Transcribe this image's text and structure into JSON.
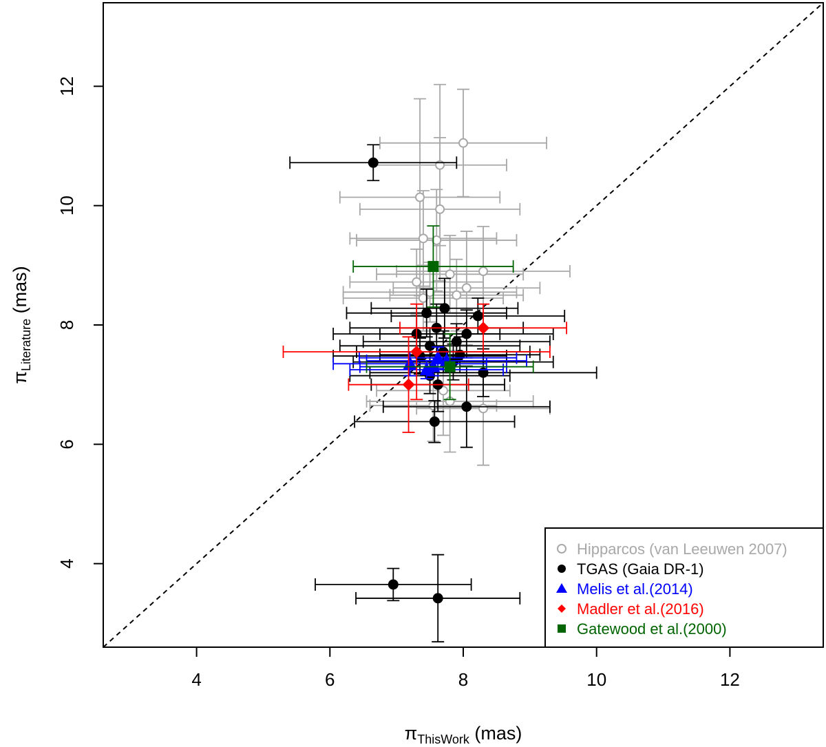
{
  "chart_data": {
    "type": "scatter",
    "title": "",
    "xlabel": {
      "symbol": "π",
      "subscript": "ThisWork",
      "unit": " (mas)"
    },
    "ylabel": {
      "symbol": "π",
      "subscript": "Literature",
      "unit": " (mas)"
    },
    "xlim": [
      2.6,
      13.4
    ],
    "ylim": [
      2.6,
      13.4
    ],
    "xticks": [
      4,
      6,
      8,
      10,
      12
    ],
    "yticks": [
      4,
      6,
      8,
      10,
      12
    ],
    "reference_line": "y = x (dashed)",
    "grid": false,
    "legend_position": "bottom-right",
    "series": [
      {
        "name": "Hipparcos (van Leeuwen 2007)",
        "color": "#a8a8a8",
        "marker": "open-circle",
        "points": [
          {
            "x": 8.0,
            "y": 11.05,
            "xerr": 1.25,
            "yerr": 0.9
          },
          {
            "x": 7.65,
            "y": 10.68,
            "xerr": 1.0,
            "yerr": 1.35
          },
          {
            "x": 7.35,
            "y": 10.14,
            "xerr": 1.2,
            "yerr": 1.65
          },
          {
            "x": 7.65,
            "y": 9.94,
            "xerr": 1.2,
            "yerr": 1.2
          },
          {
            "x": 7.4,
            "y": 9.45,
            "xerr": 1.1,
            "yerr": 0.8
          },
          {
            "x": 7.6,
            "y": 9.42,
            "xerr": 1.2,
            "yerr": 0.85
          },
          {
            "x": 8.3,
            "y": 8.9,
            "xerr": 1.3,
            "yerr": 0.75
          },
          {
            "x": 7.8,
            "y": 8.85,
            "xerr": 1.1,
            "yerr": 0.65
          },
          {
            "x": 7.3,
            "y": 8.72,
            "xerr": 1.0,
            "yerr": 0.55
          },
          {
            "x": 8.05,
            "y": 8.62,
            "xerr": 1.1,
            "yerr": 0.95
          },
          {
            "x": 7.5,
            "y": 8.55,
            "xerr": 1.3,
            "yerr": 0.5
          },
          {
            "x": 7.9,
            "y": 8.5,
            "xerr": 1.0,
            "yerr": 0.6
          },
          {
            "x": 7.4,
            "y": 8.45,
            "xerr": 1.2,
            "yerr": 0.55
          },
          {
            "x": 7.7,
            "y": 6.9,
            "xerr": 1.0,
            "yerr": 0.75
          },
          {
            "x": 7.8,
            "y": 6.72,
            "xerr": 1.25,
            "yerr": 0.85
          },
          {
            "x": 8.3,
            "y": 6.6,
            "xerr": 1.0,
            "yerr": 0.95
          },
          {
            "x": 7.55,
            "y": 6.65,
            "xerr": 0.95,
            "yerr": 0.6
          }
        ]
      },
      {
        "name": "TGAS (Gaia DR-1)",
        "color": "#000000",
        "marker": "filled-circle",
        "points": [
          {
            "x": 6.65,
            "y": 10.72,
            "xerr": 1.25,
            "yerr": 0.3
          },
          {
            "x": 7.72,
            "y": 8.28,
            "xerr": 1.1,
            "yerr": 0.5
          },
          {
            "x": 8.22,
            "y": 8.15,
            "xerr": 1.3,
            "yerr": 0.3
          },
          {
            "x": 7.45,
            "y": 8.2,
            "xerr": 1.2,
            "yerr": 0.4
          },
          {
            "x": 7.6,
            "y": 7.95,
            "xerr": 1.3,
            "yerr": 0.4
          },
          {
            "x": 8.05,
            "y": 7.85,
            "xerr": 1.3,
            "yerr": 0.4
          },
          {
            "x": 7.3,
            "y": 7.85,
            "xerr": 1.25,
            "yerr": 0.35
          },
          {
            "x": 7.9,
            "y": 7.72,
            "xerr": 1.4,
            "yerr": 0.3
          },
          {
            "x": 7.5,
            "y": 7.65,
            "xerr": 1.35,
            "yerr": 0.3
          },
          {
            "x": 7.7,
            "y": 7.55,
            "xerr": 1.3,
            "yerr": 0.35
          },
          {
            "x": 7.95,
            "y": 7.5,
            "xerr": 1.2,
            "yerr": 0.3
          },
          {
            "x": 7.35,
            "y": 7.48,
            "xerr": 1.3,
            "yerr": 0.3
          },
          {
            "x": 7.85,
            "y": 7.38,
            "xerr": 1.5,
            "yerr": 0.3
          },
          {
            "x": 8.3,
            "y": 7.2,
            "xerr": 1.7,
            "yerr": 0.4
          },
          {
            "x": 7.5,
            "y": 7.15,
            "xerr": 1.2,
            "yerr": 0.3
          },
          {
            "x": 7.62,
            "y": 7.0,
            "xerr": 1.0,
            "yerr": 0.45
          },
          {
            "x": 7.57,
            "y": 6.38,
            "xerr": 1.2,
            "yerr": 0.35
          },
          {
            "x": 8.05,
            "y": 6.63,
            "xerr": 1.25,
            "yerr": 0.68
          },
          {
            "x": 6.95,
            "y": 3.65,
            "xerr": 1.17,
            "yerr": 0.27
          },
          {
            "x": 7.62,
            "y": 3.42,
            "xerr": 1.23,
            "yerr": 0.73
          }
        ]
      },
      {
        "name": "Melis et al.(2014)",
        "color": "#0000ff",
        "marker": "filled-triangle",
        "points": [
          {
            "x": 7.2,
            "y": 7.35,
            "xerr": 1.15,
            "yerr": 0.2
          },
          {
            "x": 7.45,
            "y": 7.25,
            "xerr": 1.15,
            "yerr": 0.15
          },
          {
            "x": 7.62,
            "y": 7.45,
            "xerr": 1.18,
            "yerr": 0.18
          },
          {
            "x": 7.75,
            "y": 7.4,
            "xerr": 1.2,
            "yerr": 0.15
          },
          {
            "x": 7.55,
            "y": 7.3,
            "xerr": 1.1,
            "yerr": 0.15
          }
        ]
      },
      {
        "name": "Madler et al.(2016)",
        "color": "#ff0000",
        "marker": "filled-diamond",
        "points": [
          {
            "x": 7.3,
            "y": 7.55,
            "xerr": 2.0,
            "yerr": 0.8
          },
          {
            "x": 8.3,
            "y": 7.95,
            "xerr": 1.25,
            "yerr": 0.4
          },
          {
            "x": 7.18,
            "y": 7.0,
            "xerr": 0.9,
            "yerr": 0.8
          }
        ]
      },
      {
        "name": "Gatewood et al.(2000)",
        "color": "#006400",
        "marker": "filled-square",
        "points": [
          {
            "x": 7.55,
            "y": 8.98,
            "xerr": 1.2,
            "yerr": 0.68
          },
          {
            "x": 7.8,
            "y": 7.3,
            "xerr": 1.25,
            "yerr": 0.55
          }
        ]
      }
    ]
  }
}
